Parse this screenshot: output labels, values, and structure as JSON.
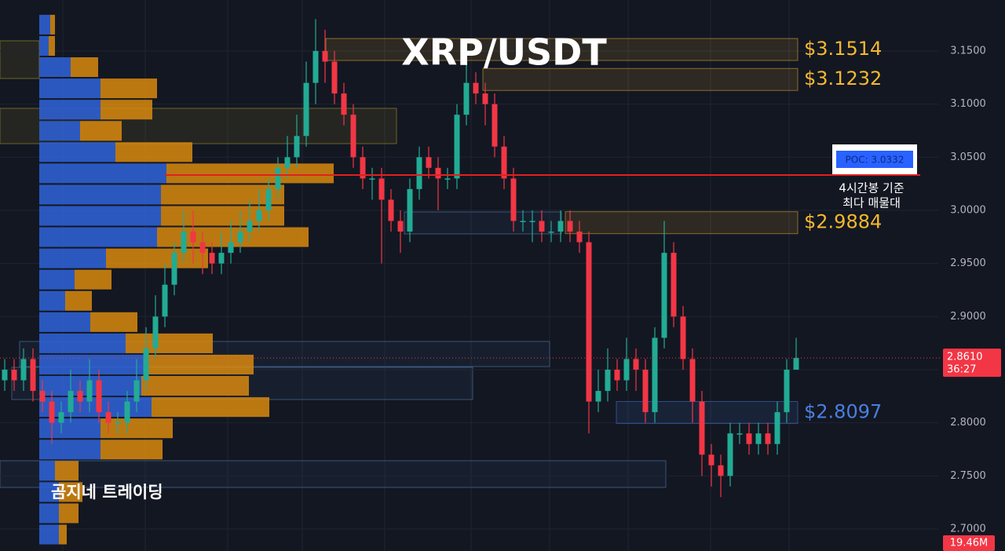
{
  "chart_data": {
    "type": "candlestick",
    "title": "XRP/USDT",
    "watermark": "곰지네 트레이딩",
    "up_color": "#22ab94",
    "down_color": "#f23645",
    "ylim": [
      2.6793,
      3.198
    ],
    "yticks": [
      {
        "value": 2.7,
        "label": "2.7000"
      },
      {
        "value": 2.75,
        "label": "2.7500"
      },
      {
        "value": 2.8,
        "label": "2.8000"
      },
      {
        "value": 2.85,
        "label": "2.8500"
      },
      {
        "value": 2.9,
        "label": "2.9000"
      },
      {
        "value": 2.95,
        "label": "2.9500"
      },
      {
        "value": 3.0,
        "label": "3.0000"
      },
      {
        "value": 3.05,
        "label": "3.0500"
      },
      {
        "value": 3.1,
        "label": "3.1000"
      },
      {
        "value": 3.15,
        "label": "3.1500"
      }
    ],
    "open": [
      2.84,
      2.85,
      2.84,
      2.86,
      2.83,
      2.82,
      2.8,
      2.81,
      2.83,
      2.82,
      2.84,
      2.81,
      2.8,
      2.8,
      2.82,
      2.84,
      2.87,
      2.9,
      2.93,
      2.96,
      2.98,
      2.97,
      2.96,
      2.95,
      2.96,
      2.97,
      2.98,
      2.99,
      3.0,
      3.02,
      3.04,
      3.05,
      3.07,
      3.12,
      3.15,
      3.14,
      3.11,
      3.09,
      3.05,
      3.03,
      3.03,
      3.01,
      2.99,
      2.98,
      3.02,
      3.05,
      3.04,
      3.03,
      3.03,
      3.09,
      3.12,
      3.11,
      3.1,
      3.06,
      3.03,
      2.99,
      2.99,
      2.99,
      2.98,
      2.98,
      2.99,
      2.98,
      2.97,
      2.82,
      2.83,
      2.85,
      2.84,
      2.86,
      2.85,
      2.81,
      2.88,
      2.96,
      2.9,
      2.86,
      2.82,
      2.77,
      2.76,
      2.75,
      2.79,
      2.79,
      2.78,
      2.79,
      2.78,
      2.81,
      2.85
    ],
    "high": [
      2.86,
      2.86,
      2.87,
      2.87,
      2.84,
      2.83,
      2.82,
      2.85,
      2.84,
      2.86,
      2.85,
      2.82,
      2.81,
      2.83,
      2.86,
      2.89,
      2.92,
      2.95,
      2.97,
      3.0,
      3.0,
      2.98,
      2.97,
      2.98,
      2.99,
      3.0,
      3.01,
      3.02,
      3.03,
      3.05,
      3.07,
      3.09,
      3.14,
      3.18,
      3.17,
      3.15,
      3.12,
      3.1,
      3.06,
      3.04,
      3.04,
      3.02,
      3.0,
      3.03,
      3.06,
      3.06,
      3.05,
      3.04,
      3.1,
      3.14,
      3.13,
      3.12,
      3.11,
      3.07,
      3.04,
      3.0,
      3.0,
      3.0,
      2.99,
      3.0,
      3.0,
      2.99,
      2.98,
      2.85,
      2.87,
      2.86,
      2.88,
      2.87,
      2.86,
      2.89,
      2.99,
      2.97,
      2.91,
      2.87,
      2.83,
      2.78,
      2.77,
      2.8,
      2.8,
      2.8,
      2.8,
      2.8,
      2.82,
      2.86,
      2.88
    ],
    "low": [
      2.83,
      2.83,
      2.83,
      2.82,
      2.81,
      2.78,
      2.79,
      2.8,
      2.81,
      2.81,
      2.8,
      2.79,
      2.79,
      2.79,
      2.81,
      2.83,
      2.86,
      2.89,
      2.92,
      2.95,
      2.95,
      2.94,
      2.94,
      2.94,
      2.95,
      2.96,
      2.97,
      2.98,
      2.99,
      3.01,
      3.03,
      3.04,
      3.06,
      3.1,
      3.12,
      3.1,
      3.08,
      3.04,
      3.02,
      3.01,
      2.95,
      2.98,
      2.96,
      2.97,
      3.01,
      3.03,
      3.0,
      3.02,
      3.02,
      3.08,
      3.1,
      3.08,
      3.05,
      3.02,
      2.98,
      2.98,
      2.97,
      2.97,
      2.97,
      2.97,
      2.97,
      2.96,
      2.79,
      2.81,
      2.82,
      2.83,
      2.83,
      2.83,
      2.8,
      2.8,
      2.87,
      2.89,
      2.85,
      2.8,
      2.75,
      2.74,
      2.73,
      2.74,
      2.78,
      2.77,
      2.77,
      2.77,
      2.77,
      2.8,
      2.85
    ],
    "close": [
      2.85,
      2.84,
      2.86,
      2.83,
      2.82,
      2.8,
      2.81,
      2.83,
      2.82,
      2.84,
      2.81,
      2.8,
      2.8,
      2.82,
      2.84,
      2.87,
      2.9,
      2.93,
      2.96,
      2.98,
      2.97,
      2.96,
      2.95,
      2.96,
      2.97,
      2.98,
      2.99,
      3.0,
      3.02,
      3.04,
      3.05,
      3.07,
      3.12,
      3.15,
      3.14,
      3.11,
      3.09,
      3.05,
      3.03,
      3.03,
      3.01,
      2.99,
      2.98,
      3.02,
      3.05,
      3.04,
      3.03,
      3.03,
      3.09,
      3.12,
      3.11,
      3.1,
      3.06,
      3.03,
      2.99,
      2.99,
      2.99,
      2.98,
      2.98,
      2.99,
      2.98,
      2.97,
      2.82,
      2.83,
      2.85,
      2.84,
      2.86,
      2.85,
      2.81,
      2.88,
      2.96,
      2.9,
      2.86,
      2.82,
      2.77,
      2.76,
      2.75,
      2.79,
      2.79,
      2.78,
      2.79,
      2.78,
      2.81,
      2.85,
      2.861
    ],
    "volume_profile": {
      "buy_color": "#2f5fd0",
      "sell_color": "#d98a0e",
      "bins": [
        2.6848,
        2.7048,
        2.7248,
        2.7448,
        2.7648,
        2.7848,
        2.8048,
        2.8248,
        2.8448,
        2.8648,
        2.8848,
        2.9048,
        2.9248,
        2.9448,
        2.9648,
        2.9848,
        3.0048,
        3.0248,
        3.0448,
        3.0648,
        3.0848,
        3.1048,
        3.1248,
        3.1448,
        3.1648,
        3.1848
      ],
      "buy": [
        25,
        25,
        25,
        20,
        78,
        78,
        143,
        130,
        135,
        110,
        65,
        33,
        45,
        85,
        150,
        155,
        155,
        162,
        97,
        52,
        78,
        78,
        40,
        12,
        14
      ],
      "sell": [
        10,
        25,
        30,
        30,
        79,
        92,
        150,
        137,
        138,
        111,
        60,
        34,
        47,
        130,
        193,
        157,
        157,
        213,
        98,
        53,
        66,
        72,
        35,
        8,
        6
      ]
    },
    "levels": [
      {
        "value": 3.1514,
        "label": "$3.1514",
        "color": "#f5b82e"
      },
      {
        "value": 3.1232,
        "label": "$3.1232",
        "color": "#f5b82e"
      },
      {
        "value": 2.9884,
        "label": "$2.9884",
        "color": "#f5b82e"
      },
      {
        "value": 2.8097,
        "label": "$2.8097",
        "color": "#4a7fe0"
      }
    ],
    "poc": {
      "value": 3.0332,
      "label": "POC: 3.0332",
      "color": "#e0201f",
      "note": [
        "4시간봉 기준",
        "최다 매물대"
      ]
    },
    "last_price": {
      "value": 2.861,
      "label": "2.8610",
      "countdown": "36:27"
    },
    "volume_label": "19.46M"
  }
}
